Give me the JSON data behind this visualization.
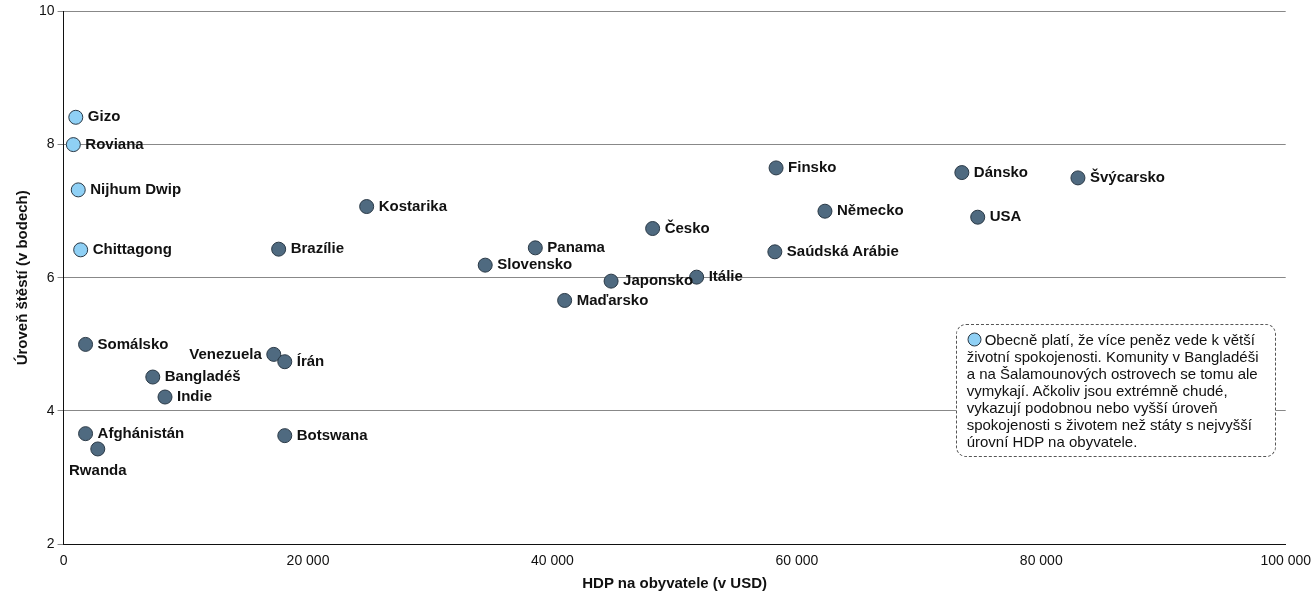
{
  "chart_data": {
    "type": "scatter",
    "xlabel": "HDP na obyvatele (v USD)",
    "ylabel": "Úroveň štěstí (v bodech)",
    "xlim": [
      0,
      100000
    ],
    "xticks": [
      0,
      {
        "value": 20000,
        "label": "20 000"
      },
      {
        "value": 40000,
        "label": "40 000"
      },
      {
        "value": 60000,
        "label": "60 000"
      },
      {
        "value": 80000,
        "label": "80 000"
      },
      {
        "value": 100000,
        "label": "100 000"
      }
    ],
    "ylim": [
      2,
      10
    ],
    "yticks": [
      2,
      4,
      6,
      8,
      10
    ],
    "grid": "y",
    "legend": "bottom right",
    "marker": "circle",
    "series": [
      {
        "color": "#4f6a80",
        "x": [
          1800,
          7300,
          8300,
          1800,
          2800,
          17200,
          18100,
          18100,
          17600,
          24800,
          34500,
          38600,
          41000,
          44800,
          48200,
          51800,
          58300,
          58200,
          62300,
          73500,
          74800,
          83000
        ],
        "values": [
          5.0,
          4.51,
          4.21,
          3.66,
          3.43,
          4.85,
          4.74,
          3.63,
          6.43,
          7.07,
          6.19,
          6.45,
          5.66,
          5.95,
          6.74,
          6.01,
          7.65,
          6.39,
          7.0,
          7.58,
          6.91,
          7.5
        ]
      },
      {
        "name": "Obecně platí, že více peněz vede k větší životní spokojenosti. Komunity v Bangladéši a na Šalamounových ostrovech se tomu ale vymykají. Ačkoliv jsou extrémně chudé, vykazují podobnou nebo vyšší úroveň spokojenosti s životem než státy s nejvyšší úrovní HDP na obyvatele.",
        "color": "#8fd0f5",
        "x": [
          1000,
          800,
          1200,
          1400
        ],
        "values": [
          8.41,
          8.0,
          7.32,
          6.42
        ]
      }
    ],
    "annotations": [
      {
        "text": "Somálsko",
        "x": 1800,
        "y": 5.0
      },
      {
        "text": "Bangladéš",
        "x": 7300,
        "y": 4.51
      },
      {
        "text": "Indie",
        "x": 8300,
        "y": 4.21
      },
      {
        "text": "Afghánistán",
        "x": 1800,
        "y": 3.66
      },
      {
        "text": "Rwanda",
        "x": 2800,
        "y": 3.43
      },
      {
        "text": "Venezuela",
        "x": 17200,
        "y": 4.85
      },
      {
        "text": "Írán",
        "x": 18100,
        "y": 4.74
      },
      {
        "text": "Botswana",
        "x": 18100,
        "y": 3.63
      },
      {
        "text": "Brazílie",
        "x": 17600,
        "y": 6.43
      },
      {
        "text": "Kostarika",
        "x": 24800,
        "y": 7.07
      },
      {
        "text": "Slovensko",
        "x": 34500,
        "y": 6.19
      },
      {
        "text": "Panama",
        "x": 38600,
        "y": 6.45
      },
      {
        "text": "Maďarsko",
        "x": 41000,
        "y": 5.66
      },
      {
        "text": "Japonsko",
        "x": 44800,
        "y": 5.95
      },
      {
        "text": "Česko",
        "x": 48200,
        "y": 6.74
      },
      {
        "text": "Itálie",
        "x": 51800,
        "y": 6.01
      },
      {
        "text": "Finsko",
        "x": 58300,
        "y": 7.65
      },
      {
        "text": "Saúdská Arábie",
        "x": 58200,
        "y": 6.39
      },
      {
        "text": "Německo",
        "x": 62300,
        "y": 7.0
      },
      {
        "text": "Dánsko",
        "x": 73500,
        "y": 7.58
      },
      {
        "text": "USA",
        "x": 74800,
        "y": 6.91
      },
      {
        "text": "Švýcarsko",
        "x": 83000,
        "y": 7.5
      },
      {
        "text": "Gizo",
        "x": 1000,
        "y": 8.41
      },
      {
        "text": "Roviana",
        "x": 800,
        "y": 8.0
      },
      {
        "text": "Nijhum Dwip",
        "x": 1200,
        "y": 7.32
      },
      {
        "text": "Chittagong",
        "x": 1400,
        "y": 6.42
      }
    ]
  }
}
